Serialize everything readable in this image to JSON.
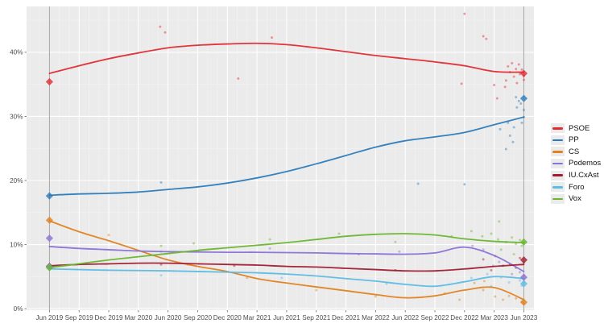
{
  "chart_data": {
    "type": "line",
    "title": "",
    "description": "Opinion polling trends with smoothed lines, poll scatter points and election result diamonds",
    "x_tick_labels": [
      "Jun 2019",
      "Sep 2019",
      "Dec 2019",
      "Mar 2020",
      "Jun 2020",
      "Sep 2020",
      "Dec 2020",
      "Mar 2021",
      "Jun 2021",
      "Sep 2021",
      "Dec 2021",
      "Mar 2022",
      "Jun 2022",
      "Sep 2022",
      "Dec 2022",
      "Mar 2023",
      "Jun 2023"
    ],
    "y_tick_labels": [
      "0%",
      "10%",
      "20%",
      "30%",
      "40%"
    ],
    "y_major_values": [
      0,
      10,
      20,
      30,
      40
    ],
    "y_minor_values": [
      5,
      15,
      25,
      35,
      45
    ],
    "x_range_months": [
      0,
      48
    ],
    "ylim": [
      0,
      47.1
    ],
    "election_marker_months": [
      0,
      48
    ],
    "legend_position": "right",
    "grid": true,
    "series": [
      {
        "name": "PSOE",
        "color": "#e22a33",
        "quarterly_values": [
          36.7,
          37.9,
          39.0,
          39.9,
          40.7,
          41.1,
          41.3,
          41.4,
          41.2,
          40.7,
          40.1,
          39.5,
          39.0,
          38.5,
          37.9,
          37.0,
          36.9
        ],
        "election_results": [
          [
            0,
            35.4
          ],
          [
            48,
            36.7
          ]
        ],
        "polls_scatter": [
          [
            11.2,
            44.0
          ],
          [
            11.7,
            43.1
          ],
          [
            19.1,
            35.9
          ],
          [
            22.5,
            42.3
          ],
          [
            41.7,
            35.1
          ],
          [
            42.0,
            46.0
          ],
          [
            43.9,
            42.5
          ],
          [
            44.2,
            42.1
          ],
          [
            45.0,
            34.9
          ],
          [
            45.3,
            32.8
          ],
          [
            46.1,
            34.6
          ],
          [
            46.2,
            35.6
          ],
          [
            46.4,
            37.8
          ],
          [
            46.8,
            38.3
          ],
          [
            47.0,
            36.2
          ],
          [
            47.2,
            37.4
          ],
          [
            47.5,
            38.1
          ],
          [
            47.6,
            36.6
          ],
          [
            47.8,
            37.3
          ],
          [
            48,
            36.3
          ],
          [
            48,
            35.7
          ],
          [
            47.3,
            35.2
          ],
          [
            46.6,
            36.9
          ]
        ]
      },
      {
        "name": "PP",
        "color": "#2b7bba",
        "quarterly_values": [
          17.7,
          17.9,
          18.0,
          18.2,
          18.6,
          19.0,
          19.6,
          20.4,
          21.4,
          22.6,
          23.9,
          25.2,
          26.2,
          26.8,
          27.5,
          28.7,
          29.9
        ],
        "election_results": [
          [
            0,
            17.6
          ],
          [
            48,
            32.8
          ]
        ],
        "polls_scatter": [
          [
            11.3,
            19.7
          ],
          [
            37.3,
            19.5
          ],
          [
            42.0,
            19.4
          ],
          [
            45.6,
            28.0
          ],
          [
            46.2,
            24.9
          ],
          [
            46.4,
            29.0
          ],
          [
            46.6,
            27.0
          ],
          [
            46.9,
            26.0
          ],
          [
            47.0,
            28.3
          ],
          [
            47.2,
            33.0
          ],
          [
            47.3,
            31.4
          ],
          [
            47.5,
            32.4
          ],
          [
            47.7,
            32.0
          ],
          [
            47.8,
            29.0
          ],
          [
            48,
            29.9
          ],
          [
            48,
            31.0
          ]
        ]
      },
      {
        "name": "CS",
        "color": "#e0821f",
        "quarterly_values": [
          13.7,
          12.0,
          10.6,
          9.1,
          7.6,
          6.6,
          5.8,
          4.7,
          4.0,
          3.4,
          2.8,
          2.2,
          1.7,
          2.0,
          2.9,
          3.3,
          1.4
        ],
        "election_results": [
          [
            0,
            13.8
          ],
          [
            48,
            1.0
          ]
        ],
        "polls_scatter": [
          [
            6,
            11.5
          ],
          [
            14,
            6.9
          ],
          [
            20,
            4.8
          ],
          [
            27,
            2.9
          ],
          [
            33,
            1.9
          ],
          [
            40,
            2.4
          ],
          [
            41.5,
            1.4
          ],
          [
            43,
            4.0
          ],
          [
            43.9,
            2.9
          ],
          [
            44,
            4.3
          ],
          [
            45.1,
            1.9
          ],
          [
            45.9,
            1.4
          ],
          [
            46.5,
            2.0
          ],
          [
            47.2,
            1.6
          ],
          [
            47.8,
            1.1
          ],
          [
            48,
            0.8
          ]
        ]
      },
      {
        "name": "Podemos",
        "color": "#8b72d6",
        "quarterly_values": [
          9.7,
          9.4,
          9.2,
          9.0,
          8.9,
          8.85,
          8.8,
          8.8,
          8.75,
          8.7,
          8.6,
          8.55,
          8.5,
          8.7,
          9.6,
          8.3,
          5.8
        ],
        "election_results": [
          [
            0,
            11.0
          ],
          [
            48,
            4.9
          ]
        ],
        "polls_scatter": [
          [
            11.3,
            8.9
          ],
          [
            22.3,
            9.4
          ],
          [
            31.3,
            8.5
          ],
          [
            35.4,
            8.9
          ],
          [
            42.8,
            9.8
          ],
          [
            43.9,
            9.2
          ],
          [
            44.9,
            6.7
          ],
          [
            45.5,
            7.3
          ],
          [
            46.8,
            5.4
          ],
          [
            47.6,
            5.7
          ],
          [
            47.8,
            4.8
          ],
          [
            48,
            5.2
          ]
        ]
      },
      {
        "name": "IU.CxAst",
        "color": "#a11c33",
        "quarterly_values": [
          6.7,
          6.9,
          7.0,
          7.1,
          7.1,
          7.0,
          6.9,
          6.8,
          6.6,
          6.5,
          6.3,
          6.1,
          5.9,
          5.9,
          6.2,
          6.6,
          6.9
        ],
        "election_results": [
          [
            0,
            6.6
          ],
          [
            48,
            7.6
          ]
        ],
        "polls_scatter": [
          [
            11.3,
            6.9
          ],
          [
            18.7,
            6.7
          ],
          [
            35.0,
            6.0
          ],
          [
            43.9,
            7.7
          ],
          [
            44.7,
            6.0
          ],
          [
            45.1,
            8.2
          ],
          [
            45.9,
            6.7
          ],
          [
            46.6,
            6.9
          ],
          [
            47.2,
            6.4
          ],
          [
            47.6,
            7.9
          ],
          [
            48,
            7.2
          ]
        ]
      },
      {
        "name": "Foro",
        "color": "#5bbce4",
        "quarterly_values": [
          6.2,
          6.1,
          6.0,
          5.95,
          5.9,
          5.8,
          5.7,
          5.6,
          5.4,
          5.1,
          4.7,
          4.3,
          3.8,
          3.5,
          4.2,
          5.0,
          4.7
        ],
        "election_results": [
          [
            0,
            6.5
          ],
          [
            48,
            3.9
          ]
        ],
        "polls_scatter": [
          [
            11.3,
            5.2
          ],
          [
            23.5,
            4.8
          ],
          [
            34.1,
            3.9
          ],
          [
            42.7,
            4.8
          ],
          [
            44.3,
            5.4
          ],
          [
            44.7,
            3.5
          ],
          [
            45.7,
            4.9
          ],
          [
            46.5,
            4.1
          ],
          [
            47.6,
            4.4
          ],
          [
            47.8,
            3.6
          ],
          [
            48,
            4.2
          ]
        ]
      },
      {
        "name": "Vox",
        "color": "#6cb52d",
        "quarterly_values": [
          6.4,
          7.0,
          7.6,
          8.1,
          8.6,
          9.1,
          9.5,
          9.9,
          10.3,
          10.8,
          11.3,
          11.6,
          11.7,
          11.5,
          10.9,
          10.5,
          10.3
        ],
        "election_results": [
          [
            0,
            6.4
          ],
          [
            48,
            10.4
          ]
        ],
        "polls_scatter": [
          [
            11.3,
            9.8
          ],
          [
            14.6,
            10.2
          ],
          [
            22.3,
            10.8
          ],
          [
            29.3,
            11.7
          ],
          [
            35.0,
            10.4
          ],
          [
            40.7,
            11.3
          ],
          [
            42.7,
            12.1
          ],
          [
            43.8,
            11.3
          ],
          [
            44.7,
            11.7
          ],
          [
            45.4,
            10.8
          ],
          [
            45.5,
            13.6
          ],
          [
            45.7,
            9.2
          ],
          [
            46.2,
            10.4
          ],
          [
            46.8,
            11.1
          ],
          [
            47.0,
            8.5
          ],
          [
            47.2,
            10.1
          ],
          [
            47.6,
            10.7
          ],
          [
            47.8,
            9.8
          ],
          [
            48,
            10.3
          ]
        ]
      }
    ],
    "colors": {
      "panel_background": "#ebebeb",
      "grid_major": "#ffffff",
      "grid_minor": "#f3f3f3",
      "election_line": "#a3a3a3",
      "axis_text": "#4d4d4d",
      "tick_mark": "#666666"
    }
  }
}
